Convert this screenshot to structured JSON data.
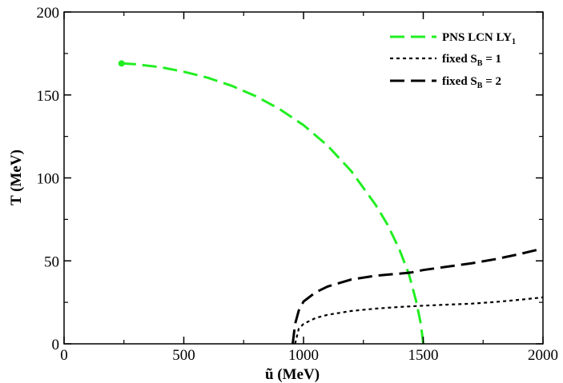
{
  "chart_data": {
    "type": "line",
    "xlabel": "ũ (MeV)",
    "ylabel": "T (MeV)",
    "xlim": [
      0,
      2000
    ],
    "ylim": [
      0,
      200
    ],
    "xticks": [
      0,
      500,
      1000,
      1500,
      2000
    ],
    "yticks": [
      0,
      50,
      100,
      150,
      200
    ],
    "grid": false,
    "legend_position": "top-right",
    "series": [
      {
        "name": "PNS LCN LY",
        "name_sub": "1",
        "color": "#22ee22",
        "dash": "long-dash",
        "marker_start": true,
        "x": [
          240,
          300,
          400,
          500,
          600,
          700,
          800,
          900,
          1000,
          1100,
          1200,
          1300,
          1350,
          1400,
          1440,
          1470,
          1490,
          1500
        ],
        "y": [
          169,
          168.5,
          166.8,
          164,
          160.4,
          155.5,
          149.3,
          141.5,
          131.8,
          119.5,
          104,
          84,
          72,
          57,
          42,
          26,
          12,
          0
        ]
      },
      {
        "name": "fixed S",
        "name_sub": "B",
        "name_suffix": " = 1",
        "color": "#000000",
        "dash": "dotted",
        "x": [
          965,
          980,
          1000,
          1050,
          1100,
          1200,
          1300,
          1400,
          1500,
          1600,
          1700,
          1800,
          1900,
          2000
        ],
        "y": [
          0,
          9,
          12,
          15.5,
          17.5,
          19.8,
          21.2,
          22.2,
          23,
          23.6,
          24.2,
          25.2,
          26.5,
          28
        ]
      },
      {
        "name": "fixed S",
        "name_sub": "B",
        "name_suffix": " = 2",
        "color": "#000000",
        "dash": "long-dash",
        "x": [
          955,
          965,
          980,
          1000,
          1050,
          1100,
          1200,
          1300,
          1400,
          1450,
          1500,
          1600,
          1700,
          1800,
          1900,
          2000
        ],
        "y": [
          0,
          12,
          20,
          25.5,
          31,
          34.5,
          38.8,
          41,
          42.3,
          43,
          44.5,
          46.5,
          48.5,
          51,
          54,
          57.5
        ]
      }
    ]
  }
}
